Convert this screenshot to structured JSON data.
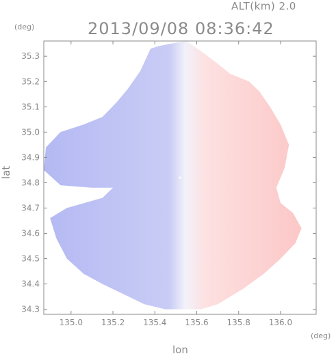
{
  "header": {
    "altitude": "ALT(km) 2.0",
    "datetime": "2013/09/08 08:36:42",
    "y_unit": "(deg)",
    "x_unit": "(deg)"
  },
  "chart_data": {
    "type": "heatmap",
    "title": "2013/09/08 08:36:42",
    "xlabel": "lon",
    "ylabel": "lat",
    "xlim": [
      134.87,
      136.17
    ],
    "ylim": [
      34.28,
      35.36
    ],
    "x_ticks": [
      135.0,
      135.2,
      135.4,
      135.6,
      135.8,
      136.0
    ],
    "y_ticks": [
      34.3,
      34.4,
      34.5,
      34.6,
      34.7,
      34.8,
      34.9,
      35.0,
      35.1,
      35.2,
      35.3
    ],
    "x_tick_labels": [
      "135.0",
      "135.2",
      "135.4",
      "135.6",
      "135.8",
      "136.0"
    ],
    "y_tick_labels": [
      "34.3",
      "34.4",
      "34.5",
      "34.6",
      "34.7",
      "34.8",
      "34.9",
      "35.0",
      "35.1",
      "35.2",
      "35.3"
    ],
    "grid": false,
    "center": {
      "lon": 135.52,
      "lat": 34.82
    },
    "colors": {
      "approaching": "#b4b9f3",
      "receding": "#fcc6c6",
      "zero": "#f2f2fa"
    },
    "echo_boundary_west": [
      [
        135.38,
        35.33
      ],
      [
        135.33,
        35.24
      ],
      [
        135.27,
        35.17
      ],
      [
        135.22,
        35.12
      ],
      [
        135.15,
        35.06
      ],
      [
        135.06,
        35.03
      ],
      [
        134.95,
        35.0
      ],
      [
        134.88,
        34.94
      ],
      [
        134.87,
        34.85
      ],
      [
        134.95,
        34.79
      ],
      [
        135.1,
        34.78
      ],
      [
        135.2,
        34.78
      ],
      [
        135.15,
        34.74
      ],
      [
        134.98,
        34.7
      ],
      [
        134.9,
        34.66
      ],
      [
        134.93,
        34.58
      ],
      [
        134.98,
        34.5
      ],
      [
        135.06,
        34.44
      ],
      [
        135.15,
        34.4
      ],
      [
        135.25,
        34.36
      ],
      [
        135.35,
        34.32
      ],
      [
        135.45,
        34.3
      ],
      [
        135.55,
        34.3
      ],
      [
        135.62,
        34.3
      ]
    ],
    "echo_boundary_east": [
      [
        135.62,
        34.3
      ],
      [
        135.7,
        34.32
      ],
      [
        135.82,
        34.38
      ],
      [
        135.92,
        34.44
      ],
      [
        136.0,
        34.5
      ],
      [
        136.07,
        34.56
      ],
      [
        136.1,
        34.62
      ],
      [
        136.06,
        34.68
      ],
      [
        136.0,
        34.72
      ],
      [
        135.98,
        34.78
      ],
      [
        136.02,
        34.86
      ],
      [
        136.04,
        34.95
      ],
      [
        136.0,
        35.03
      ],
      [
        135.95,
        35.1
      ],
      [
        135.9,
        35.16
      ],
      [
        135.85,
        35.2
      ],
      [
        135.76,
        35.23
      ],
      [
        135.7,
        35.27
      ],
      [
        135.62,
        35.32
      ],
      [
        135.55,
        35.36
      ],
      [
        135.48,
        35.35
      ],
      [
        135.42,
        35.34
      ],
      [
        135.38,
        35.33
      ]
    ]
  }
}
